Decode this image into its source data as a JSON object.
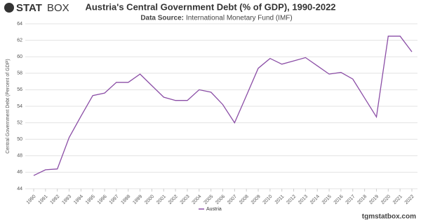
{
  "logo": {
    "bold": "STAT",
    "light": "BOX"
  },
  "source_label": "Data Source:",
  "watermark": "tgmstatbox.com",
  "chart_data": {
    "type": "line",
    "title": "Austria's Central Government Debt (% of GDP), 1990-2022",
    "subtitle": "International Monetary Fund (IMF)",
    "y_label": "Central Government Debt (Percent of GDP)",
    "categories": [
      "1990",
      "1991",
      "1992",
      "1993",
      "1994",
      "1995",
      "1996",
      "1997",
      "1998",
      "1999",
      "2000",
      "2001",
      "2002",
      "2003",
      "2004",
      "2005",
      "2006",
      "2007",
      "2008",
      "2009",
      "2010",
      "2011",
      "2012",
      "2013",
      "2014",
      "2015",
      "2016",
      "2017",
      "2018",
      "2019",
      "2020",
      "2021",
      "2022"
    ],
    "series": [
      {
        "name": "Austria",
        "color": "#8b4ea6",
        "values": [
          45.6,
          46.3,
          46.4,
          50.2,
          52.8,
          55.3,
          55.6,
          56.9,
          56.9,
          57.9,
          56.5,
          55.1,
          54.7,
          54.7,
          56.0,
          55.7,
          54.2,
          52.0,
          55.3,
          58.6,
          59.8,
          59.1,
          59.5,
          59.9,
          58.9,
          57.9,
          58.1,
          57.3,
          55.0,
          52.7,
          62.5,
          62.5,
          60.6
        ]
      }
    ],
    "ylim": [
      44,
      64
    ],
    "yticks": [
      44,
      46,
      48,
      50,
      52,
      54,
      56,
      58,
      60,
      62,
      64
    ],
    "grid": true
  }
}
